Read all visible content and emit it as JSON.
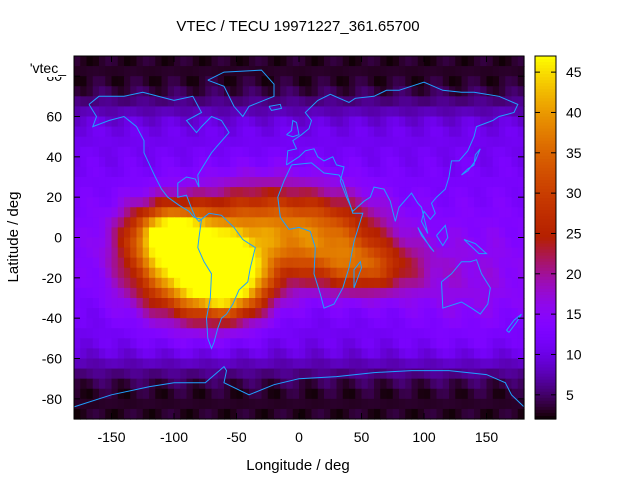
{
  "chart_data": {
    "type": "heatmap",
    "title": "VTEC / TECU 19971227_361.65700",
    "xlabel": "Longitude / deg",
    "ylabel": "Latitude / deg",
    "series_key": "'vtec_",
    "xlim": [
      -180,
      180
    ],
    "ylim": [
      -90,
      90
    ],
    "x_ticks": [
      -150,
      -100,
      -50,
      0,
      50,
      100,
      150
    ],
    "y_ticks": [
      80,
      60,
      40,
      20,
      0,
      -20,
      -40,
      -60,
      -80
    ],
    "colorbar": {
      "range": [
        2,
        47
      ],
      "ticks": [
        5,
        10,
        15,
        20,
        25,
        30,
        35,
        40,
        45
      ]
    },
    "background_vtec": 11,
    "polar_vtec": 5,
    "hotspots": [
      {
        "lon": -87,
        "lat": -15,
        "vtec": 44,
        "sigma_lon": 32,
        "sigma_lat": 16
      },
      {
        "lon": -105,
        "lat": 2,
        "vtec": 36,
        "sigma_lon": 22,
        "sigma_lat": 10
      },
      {
        "lon": -55,
        "lat": -22,
        "vtec": 40,
        "sigma_lon": 22,
        "sigma_lat": 12
      },
      {
        "lon": -30,
        "lat": 5,
        "vtec": 30,
        "sigma_lon": 35,
        "sigma_lat": 15
      },
      {
        "lon": 25,
        "lat": 0,
        "vtec": 28,
        "sigma_lon": 30,
        "sigma_lat": 14
      },
      {
        "lon": 55,
        "lat": -15,
        "vtec": 26,
        "sigma_lon": 28,
        "sigma_lat": 9
      },
      {
        "lon": 135,
        "lat": -25,
        "vtec": 15,
        "sigma_lon": 40,
        "sigma_lat": 20
      }
    ],
    "coastlines": [
      [
        [
          -168,
          66
        ],
        [
          -160,
          70
        ],
        [
          -140,
          70
        ],
        [
          -125,
          72
        ],
        [
          -100,
          68
        ],
        [
          -85,
          70
        ],
        [
          -78,
          62
        ],
        [
          -90,
          58
        ],
        [
          -82,
          52
        ],
        [
          -78,
          55
        ],
        [
          -70,
          60
        ],
        [
          -62,
          58
        ],
        [
          -56,
          52
        ],
        [
          -66,
          45
        ],
        [
          -70,
          42
        ],
        [
          -76,
          36
        ],
        [
          -81,
          31
        ],
        [
          -80,
          25
        ],
        [
          -83,
          29
        ],
        [
          -90,
          30
        ],
        [
          -97,
          27
        ],
        [
          -97,
          20
        ],
        [
          -90,
          21
        ],
        [
          -87,
          16
        ],
        [
          -83,
          10
        ],
        [
          -80,
          8
        ],
        [
          -78,
          9
        ],
        [
          -84,
          10
        ],
        [
          -88,
          13
        ],
        [
          -96,
          16
        ],
        [
          -105,
          20
        ],
        [
          -110,
          24
        ],
        [
          -115,
          30
        ],
        [
          -118,
          34
        ],
        [
          -124,
          42
        ],
        [
          -124,
          48
        ],
        [
          -130,
          55
        ],
        [
          -140,
          60
        ],
        [
          -152,
          58
        ],
        [
          -165,
          55
        ],
        [
          -162,
          60
        ],
        [
          -168,
          66
        ]
      ],
      [
        [
          -78,
          9
        ],
        [
          -72,
          12
        ],
        [
          -62,
          11
        ],
        [
          -52,
          5
        ],
        [
          -45,
          -1
        ],
        [
          -35,
          -5
        ],
        [
          -39,
          -15
        ],
        [
          -41,
          -22
        ],
        [
          -48,
          -26
        ],
        [
          -53,
          -33
        ],
        [
          -58,
          -38
        ],
        [
          -62,
          -40
        ],
        [
          -65,
          -45
        ],
        [
          -68,
          -52
        ],
        [
          -70,
          -55
        ],
        [
          -73,
          -50
        ],
        [
          -74,
          -40
        ],
        [
          -71,
          -30
        ],
        [
          -70,
          -18
        ],
        [
          -76,
          -12
        ],
        [
          -81,
          -5
        ],
        [
          -80,
          0
        ],
        [
          -78,
          9
        ]
      ],
      [
        [
          -6,
          36
        ],
        [
          10,
          37
        ],
        [
          20,
          32
        ],
        [
          32,
          31
        ],
        [
          35,
          28
        ],
        [
          43,
          12
        ],
        [
          51,
          12
        ],
        [
          44,
          -2
        ],
        [
          40,
          -15
        ],
        [
          35,
          -25
        ],
        [
          28,
          -33
        ],
        [
          20,
          -35
        ],
        [
          17,
          -28
        ],
        [
          12,
          -18
        ],
        [
          13,
          -5
        ],
        [
          9,
          3
        ],
        [
          0,
          5
        ],
        [
          -8,
          4
        ],
        [
          -15,
          10
        ],
        [
          -17,
          20
        ],
        [
          -12,
          28
        ],
        [
          -6,
          36
        ]
      ],
      [
        [
          44,
          -25
        ],
        [
          50,
          -15
        ],
        [
          49,
          -12
        ],
        [
          44,
          -16
        ],
        [
          44,
          -25
        ]
      ],
      [
        [
          -10,
          36
        ],
        [
          -9,
          43
        ],
        [
          -2,
          44
        ],
        [
          -5,
          48
        ],
        [
          2,
          51
        ],
        [
          8,
          54
        ],
        [
          10,
          58
        ],
        [
          5,
          62
        ],
        [
          15,
          68
        ],
        [
          25,
          71
        ],
        [
          40,
          67
        ],
        [
          45,
          69
        ],
        [
          60,
          70
        ],
        [
          70,
          73
        ],
        [
          80,
          73
        ],
        [
          100,
          77
        ],
        [
          115,
          73
        ],
        [
          130,
          72
        ],
        [
          140,
          72
        ],
        [
          160,
          70
        ],
        [
          175,
          66
        ],
        [
          172,
          62
        ],
        [
          160,
          60
        ],
        [
          155,
          58
        ],
        [
          142,
          55
        ],
        [
          140,
          50
        ],
        [
          135,
          43
        ],
        [
          128,
          38
        ],
        [
          122,
          38
        ],
        [
          120,
          30
        ],
        [
          117,
          24
        ],
        [
          110,
          20
        ],
        [
          106,
          17
        ],
        [
          109,
          12
        ],
        [
          105,
          9
        ],
        [
          100,
          13
        ],
        [
          98,
          8
        ],
        [
          103,
          2
        ],
        [
          98,
          15
        ],
        [
          95,
          17
        ],
        [
          90,
          22
        ],
        [
          80,
          15
        ],
        [
          77,
          8
        ],
        [
          73,
          18
        ],
        [
          68,
          24
        ],
        [
          60,
          25
        ],
        [
          57,
          20
        ],
        [
          52,
          18
        ],
        [
          43,
          13
        ],
        [
          38,
          20
        ],
        [
          33,
          28
        ],
        [
          36,
          35
        ],
        [
          30,
          36
        ],
        [
          27,
          40
        ],
        [
          20,
          38
        ],
        [
          15,
          40
        ],
        [
          12,
          44
        ],
        [
          5,
          43
        ],
        [
          0,
          40
        ],
        [
          -10,
          36
        ]
      ],
      [
        [
          -10,
          51
        ],
        [
          -6,
          53
        ],
        [
          -5,
          58
        ],
        [
          -2,
          57
        ],
        [
          0,
          51
        ],
        [
          -5,
          50
        ],
        [
          -10,
          51
        ]
      ],
      [
        [
          130,
          31
        ],
        [
          135,
          34
        ],
        [
          140,
          36
        ],
        [
          141,
          41
        ],
        [
          145,
          44
        ],
        [
          141,
          38
        ],
        [
          135,
          33
        ],
        [
          130,
          31
        ]
      ],
      [
        [
          114,
          -22
        ],
        [
          122,
          -18
        ],
        [
          130,
          -12
        ],
        [
          137,
          -12
        ],
        [
          142,
          -11
        ],
        [
          146,
          -18
        ],
        [
          153,
          -25
        ],
        [
          151,
          -33
        ],
        [
          145,
          -38
        ],
        [
          138,
          -35
        ],
        [
          130,
          -32
        ],
        [
          115,
          -35
        ],
        [
          114,
          -22
        ]
      ],
      [
        [
          95,
          5
        ],
        [
          105,
          -5
        ],
        [
          108,
          -7
        ],
        [
          98,
          1
        ],
        [
          95,
          5
        ]
      ],
      [
        [
          110,
          1
        ],
        [
          117,
          6
        ],
        [
          119,
          0
        ],
        [
          115,
          -4
        ],
        [
          110,
          1
        ]
      ],
      [
        [
          132,
          -1
        ],
        [
          141,
          -3
        ],
        [
          150,
          -8
        ],
        [
          144,
          -8
        ],
        [
          132,
          -1
        ]
      ],
      [
        [
          166,
          -46
        ],
        [
          172,
          -41
        ],
        [
          178,
          -38
        ],
        [
          174,
          -42
        ],
        [
          168,
          -47
        ],
        [
          166,
          -46
        ]
      ],
      [
        [
          -73,
          78
        ],
        [
          -60,
          82
        ],
        [
          -30,
          83
        ],
        [
          -20,
          76
        ],
        [
          -20,
          70
        ],
        [
          -40,
          65
        ],
        [
          -45,
          60
        ],
        [
          -52,
          65
        ],
        [
          -60,
          75
        ],
        [
          -73,
          78
        ]
      ],
      [
        [
          -24,
          65
        ],
        [
          -15,
          66
        ],
        [
          -14,
          64
        ],
        [
          -22,
          63
        ],
        [
          -24,
          65
        ]
      ],
      [
        [
          -180,
          -84
        ],
        [
          -150,
          -78
        ],
        [
          -120,
          -74
        ],
        [
          -100,
          -72
        ],
        [
          -75,
          -72
        ],
        [
          -60,
          -64
        ],
        [
          -58,
          -66
        ],
        [
          -60,
          -72
        ],
        [
          -40,
          -78
        ],
        [
          -20,
          -73
        ],
        [
          0,
          -70
        ],
        [
          30,
          -69
        ],
        [
          60,
          -67
        ],
        [
          90,
          -66
        ],
        [
          120,
          -66
        ],
        [
          150,
          -68
        ],
        [
          165,
          -72
        ],
        [
          170,
          -78
        ],
        [
          180,
          -84
        ]
      ]
    ]
  }
}
